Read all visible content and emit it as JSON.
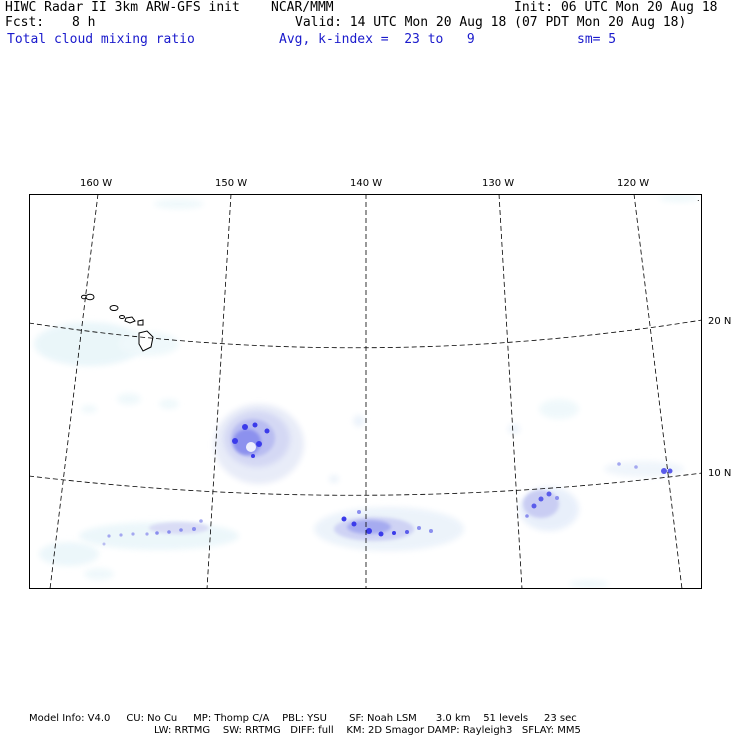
{
  "header": {
    "title": "HIWC Radar II 3km ARW-GFS init",
    "org": "NCAR/MMM",
    "init": "Init: 06 UTC Mon 20 Aug 18",
    "fcst_label": "Fcst:",
    "fcst_value": "8 h",
    "valid": "Valid: 14 UTC Mon 20 Aug 18 (07 PDT Mon 20 Aug 18)",
    "field": "Total cloud mixing ratio",
    "avg": "Avg, k-index =  23 to   9",
    "smooth": "sm= 5",
    "color_blue": "#1a1acc"
  },
  "map": {
    "lon_labels": [
      "160 W",
      "150 W",
      "140 W",
      "130 W",
      "120 W"
    ],
    "lat_labels": [
      "20 N",
      "10 N"
    ],
    "corner_mark": ".",
    "field_colors": [
      "#e6f4f8",
      "#c8cdf2",
      "#9aa0ee",
      "#3b3bea"
    ]
  },
  "footer": {
    "line1": "Model Info: V4.0     CU: No Cu     MP: Thomp C/A    PBL: YSU       SF: Noah LSM      3.0 km    51 levels     23 sec",
    "line2": "LW: RRTMG    SW: RRTMG   DIFF: full    KM: 2D Smagor DAMP: Rayleigh3   SFLAY: MM5"
  }
}
